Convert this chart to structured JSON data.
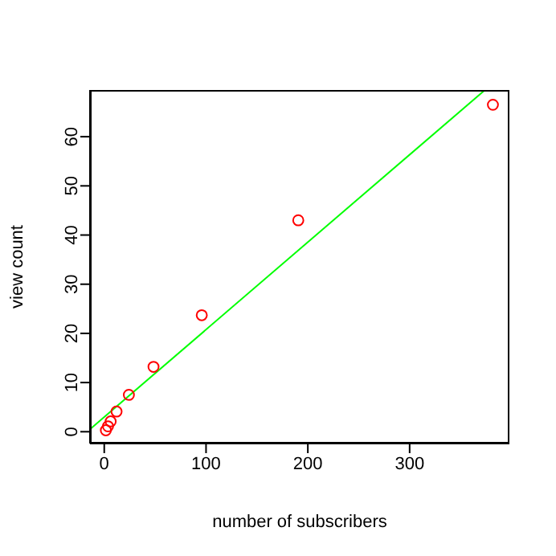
{
  "chart_data": {
    "type": "scatter",
    "xlabel": "number of subscribers",
    "ylabel": "view count",
    "xlim": [
      -14,
      398
    ],
    "ylim": [
      -2.4,
      69.5
    ],
    "xticks": [
      0,
      100,
      200,
      300
    ],
    "yticks": [
      0,
      10,
      20,
      30,
      40,
      50,
      60
    ],
    "marker": "circle",
    "series": [
      {
        "color": "#ff0000",
        "x": [
          1.6,
          3.7,
          6.3,
          12.1,
          24.2,
          48.4,
          95.8,
          190.6,
          381.8
        ],
        "values": [
          0.3,
          1.1,
          2.1,
          4.1,
          7.5,
          13.2,
          23.7,
          43.0,
          66.5
        ]
      },
      {
        "type": "line",
        "color": "#00ff00",
        "marker": "none",
        "x": [
          -14,
          374
        ],
        "values": [
          0.5,
          69.5
        ]
      }
    ]
  }
}
